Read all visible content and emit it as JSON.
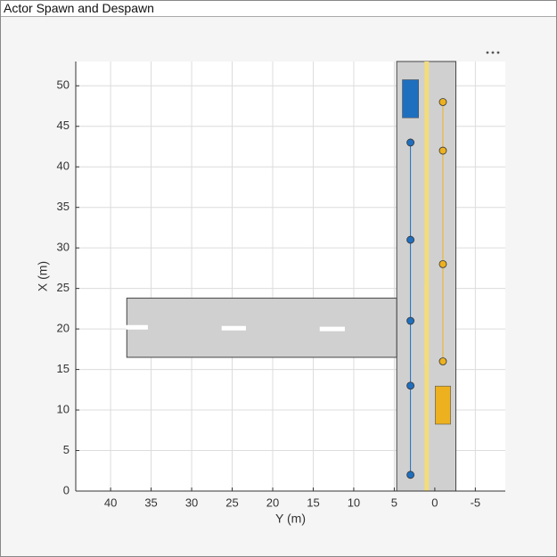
{
  "chart_data": {
    "type": "scatter",
    "title": "Actor Spawn and Despawn",
    "xlabel": "Y (m)",
    "ylabel": "X (m)",
    "xlim": [
      44.3,
      -8.7
    ],
    "ylim": [
      0,
      53
    ],
    "xticks": [
      40,
      35,
      30,
      25,
      20,
      15,
      10,
      5,
      0,
      -5
    ],
    "yticks": [
      0,
      5,
      10,
      15,
      20,
      25,
      30,
      35,
      40,
      45,
      50
    ],
    "grid": true,
    "roads": [
      {
        "x": [
          -2.6,
          4.7
        ],
        "y": [
          0,
          53
        ]
      },
      {
        "x": [
          4.7,
          38
        ],
        "y": [
          16.5,
          23.8
        ]
      }
    ],
    "lane_markings": [
      {
        "color": "#f3dc7a",
        "x": [
          1,
          1
        ],
        "values": [
          0,
          25.5
        ]
      },
      {
        "color": "#f3dc7a",
        "x": [
          1,
          1
        ],
        "values": [
          15.6,
          53
        ]
      },
      {
        "color": "#ffffff",
        "x": [
          38.1,
          35.4
        ],
        "values": [
          20.2,
          20.2
        ]
      },
      {
        "color": "#ffffff",
        "x": [
          26.3,
          23.3
        ],
        "values": [
          20.1,
          20.1
        ]
      },
      {
        "color": "#ffffff",
        "x": [
          14.2,
          11.1
        ],
        "values": [
          20,
          20
        ]
      }
    ],
    "series": [
      {
        "color": "#1f6fbf",
        "x": [
          3,
          3,
          3,
          3,
          3
        ],
        "values": [
          2,
          13,
          21,
          31,
          43
        ]
      },
      {
        "color": "#edb120",
        "x": [
          -1,
          -1,
          -1,
          -1
        ],
        "values": [
          48,
          42,
          28,
          16
        ]
      }
    ],
    "actors": [
      {
        "color": "#1f6fbf",
        "x": 3,
        "y": 48.4,
        "width": 2,
        "length": 4.7
      },
      {
        "color": "#edb120",
        "x": -1,
        "y": 10.6,
        "width": 1.9,
        "length": 4.7
      }
    ]
  }
}
